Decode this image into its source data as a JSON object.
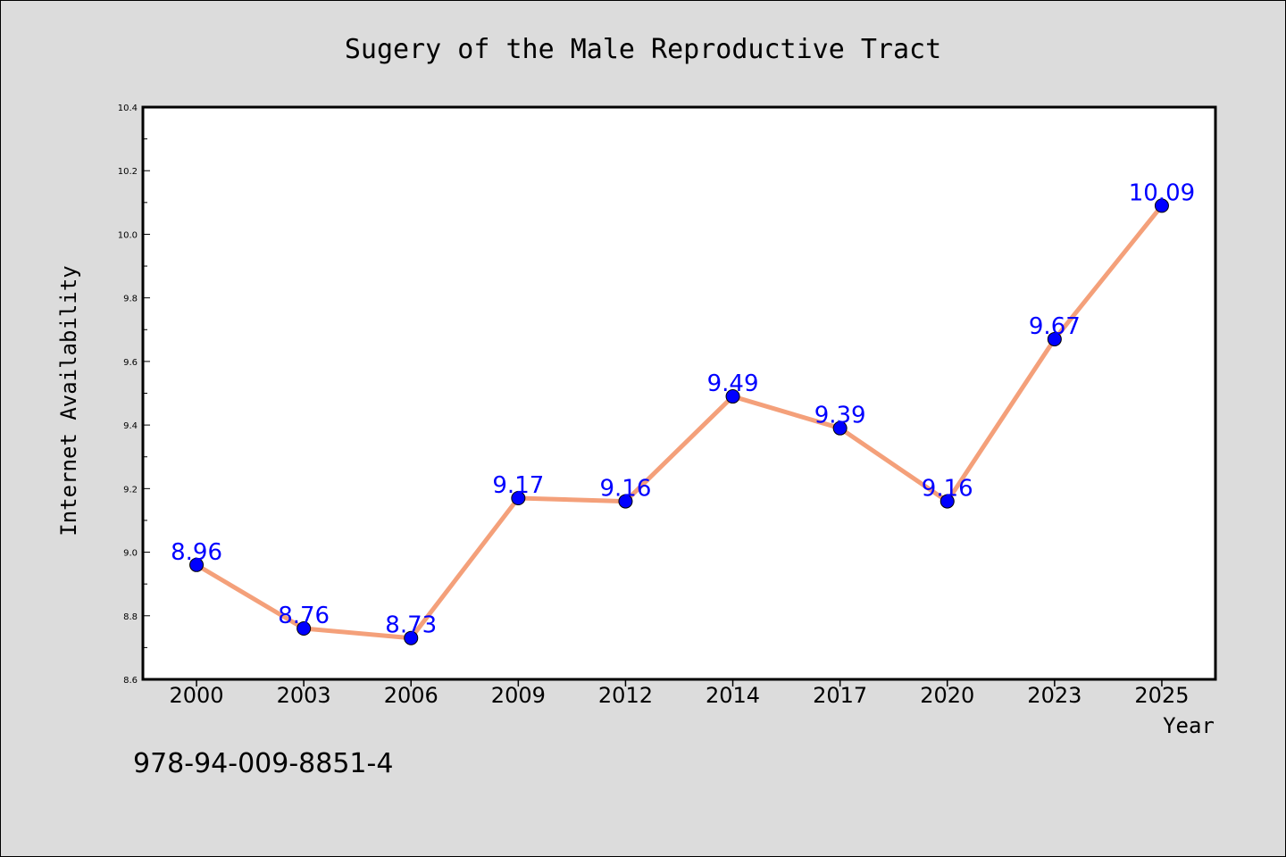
{
  "chart_data": {
    "type": "line",
    "title": "Sugery of the Male Reproductive Tract",
    "xlabel": "Year",
    "ylabel": "Internet Availability",
    "categories": [
      "2000",
      "2003",
      "2006",
      "2009",
      "2012",
      "2014",
      "2017",
      "2020",
      "2023",
      "2025"
    ],
    "values": [
      8.96,
      8.76,
      8.73,
      9.17,
      9.16,
      9.49,
      9.39,
      9.16,
      9.67,
      10.09
    ],
    "data_labels": [
      "8.96",
      "8.76",
      "8.73",
      "9.17",
      "9.16",
      "9.49",
      "9.39",
      "9.16",
      "9.67",
      "10.09"
    ],
    "ylim": [
      8.6,
      10.4
    ],
    "yticks": [
      "8.6",
      "8.8",
      "9.0",
      "9.2",
      "9.4",
      "9.6",
      "9.8",
      "10.0",
      "10.2",
      "10.4"
    ],
    "grid": false,
    "legend": "none",
    "colors": {
      "line": "#f4a07a",
      "marker": "#0000ff",
      "label": "#0000ff",
      "plot_background": "#ffffff",
      "figure_background": "#dcdcdc"
    }
  },
  "footer": {
    "isbn": "978-94-009-8851-4"
  }
}
